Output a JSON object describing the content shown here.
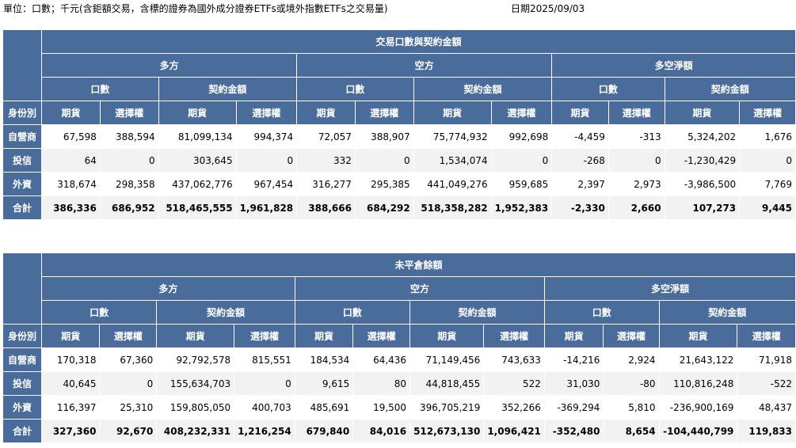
{
  "header": {
    "unit_note": "單位：口數；千元(含鉅額交易，含標的證券為國外成分證券ETFs或境外指數ETFs之交易量)",
    "date": "日期2025/09/03"
  },
  "tables": [
    {
      "title": "交易口數與契約金額",
      "groups": [
        "多方",
        "空方",
        "多空淨額"
      ],
      "subgroups": [
        "口數",
        "契約金額"
      ],
      "types": [
        "期貨",
        "選擇權"
      ],
      "row_header": "身份別",
      "rows": [
        {
          "label": "自營商",
          "values": [
            "67,598",
            "388,594",
            "81,099,134",
            "994,374",
            "72,057",
            "388,907",
            "75,774,932",
            "992,698",
            "-4,459",
            "-313",
            "5,324,202",
            "1,676"
          ]
        },
        {
          "label": "投信",
          "values": [
            "64",
            "0",
            "303,645",
            "0",
            "332",
            "0",
            "1,534,074",
            "0",
            "-268",
            "0",
            "-1,230,429",
            "0"
          ]
        },
        {
          "label": "外資",
          "values": [
            "318,674",
            "298,358",
            "437,062,776",
            "967,454",
            "316,277",
            "295,385",
            "441,049,276",
            "959,685",
            "2,397",
            "2,973",
            "-3,986,500",
            "7,769"
          ]
        },
        {
          "label": "合計",
          "values": [
            "386,336",
            "686,952",
            "518,465,555",
            "1,961,828",
            "388,666",
            "684,292",
            "518,358,282",
            "1,952,383",
            "-2,330",
            "2,660",
            "107,273",
            "9,445"
          ]
        }
      ]
    },
    {
      "title": "未平倉餘額",
      "groups": [
        "多方",
        "空方",
        "多空淨額"
      ],
      "subgroups": [
        "口數",
        "契約金額"
      ],
      "types": [
        "期貨",
        "選擇權"
      ],
      "row_header": "身份別",
      "rows": [
        {
          "label": "自營商",
          "values": [
            "170,318",
            "67,360",
            "92,792,578",
            "815,551",
            "184,534",
            "64,436",
            "71,149,456",
            "743,633",
            "-14,216",
            "2,924",
            "21,643,122",
            "71,918"
          ]
        },
        {
          "label": "投信",
          "values": [
            "40,645",
            "0",
            "155,634,703",
            "0",
            "9,615",
            "80",
            "44,818,455",
            "522",
            "31,030",
            "-80",
            "110,816,248",
            "-522"
          ]
        },
        {
          "label": "外資",
          "values": [
            "116,397",
            "25,310",
            "159,805,050",
            "400,703",
            "485,691",
            "19,500",
            "396,705,219",
            "352,266",
            "-369,294",
            "5,810",
            "-236,900,169",
            "48,437"
          ]
        },
        {
          "label": "合計",
          "values": [
            "327,360",
            "92,670",
            "408,232,331",
            "1,216,254",
            "679,840",
            "84,016",
            "512,673,130",
            "1,096,421",
            "-352,480",
            "8,654",
            "-104,440,799",
            "119,833"
          ]
        }
      ]
    }
  ]
}
